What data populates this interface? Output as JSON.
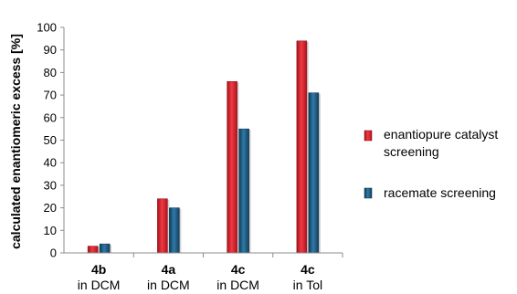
{
  "chart_data": {
    "type": "bar",
    "categories": [
      {
        "bold": "4b",
        "sub": "in DCM"
      },
      {
        "bold": "4a",
        "sub": "in DCM"
      },
      {
        "bold": "4c",
        "sub": "in DCM"
      },
      {
        "bold": "4c",
        "sub": "in Tol"
      }
    ],
    "series": [
      {
        "name": "enantiopure catalyst screening",
        "color": "#d81e2a",
        "values": [
          3,
          24,
          76,
          94
        ]
      },
      {
        "name": "racemate screening",
        "color": "#1f5f86",
        "values": [
          4,
          20,
          55,
          71
        ]
      }
    ],
    "ylabel": "calculated enantiomeric excess [%]",
    "ylim": [
      0,
      100
    ],
    "yticks": [
      0,
      10,
      20,
      30,
      40,
      50,
      60,
      70,
      80,
      90,
      100
    ],
    "grid": false,
    "legend_position": "right"
  }
}
